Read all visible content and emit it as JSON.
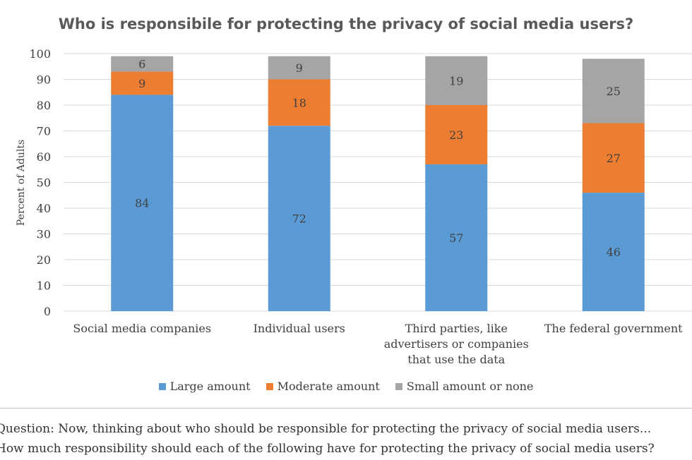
{
  "chart_data": {
    "type": "bar",
    "stacked": true,
    "title": "Who is responsibile for protecting the privacy of social media users?",
    "ylabel": "Percent of Adults",
    "xlabel": "",
    "ylim": [
      0,
      100
    ],
    "yticks": [
      0,
      10,
      20,
      30,
      40,
      50,
      60,
      70,
      80,
      90,
      100
    ],
    "grid": true,
    "legend_position": "bottom",
    "categories": [
      [
        "Social media companies"
      ],
      [
        "Individual users"
      ],
      [
        "Third parties, like",
        "advertisers or companies",
        "that use the data"
      ],
      [
        "The federal government"
      ]
    ],
    "series": [
      {
        "name": "Large amount",
        "color": "#5B9BD5",
        "values": [
          84,
          72,
          57,
          46
        ]
      },
      {
        "name": "Moderate amount",
        "color": "#ED7D31",
        "values": [
          9,
          18,
          23,
          27
        ]
      },
      {
        "name": "Small amount or none",
        "color": "#A5A5A5",
        "values": [
          6,
          9,
          19,
          25
        ]
      }
    ]
  },
  "footnote": {
    "line1": "Question: Now, thinking about who should be responsible for protecting the privacy of social media users...",
    "line2": "How much responsibility should each of the following have for protecting the privacy of social media users?"
  }
}
